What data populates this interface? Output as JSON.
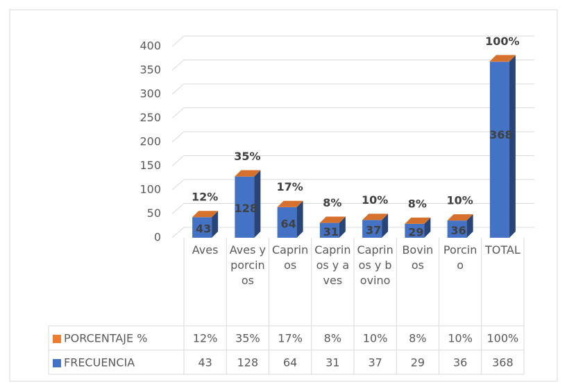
{
  "chart_data": {
    "type": "bar3d",
    "categories": [
      "Aves",
      "Aves y porcinos",
      "Caprinos",
      "Caprinos y aves",
      "Caprinos y bovino",
      "Bovinos",
      "Porcino",
      "TOTAL"
    ],
    "series": [
      {
        "name": "PORCENTAJE %",
        "color": "#ed7d31",
        "values": [
          0.12,
          0.35,
          0.17,
          0.08,
          0.1,
          0.08,
          0.1,
          1.0
        ],
        "value_labels": [
          "12%",
          "35%",
          "17%",
          "8%",
          "10%",
          "8%",
          "10%",
          "100%"
        ]
      },
      {
        "name": "FRECUENCIA",
        "color": "#4472c4",
        "values": [
          43,
          128,
          64,
          31,
          37,
          29,
          36,
          368
        ]
      }
    ],
    "ylim": [
      0,
      400
    ],
    "yticks": [
      0,
      50,
      100,
      150,
      200,
      250,
      300,
      350,
      400
    ],
    "grid": true,
    "data_table": true
  }
}
